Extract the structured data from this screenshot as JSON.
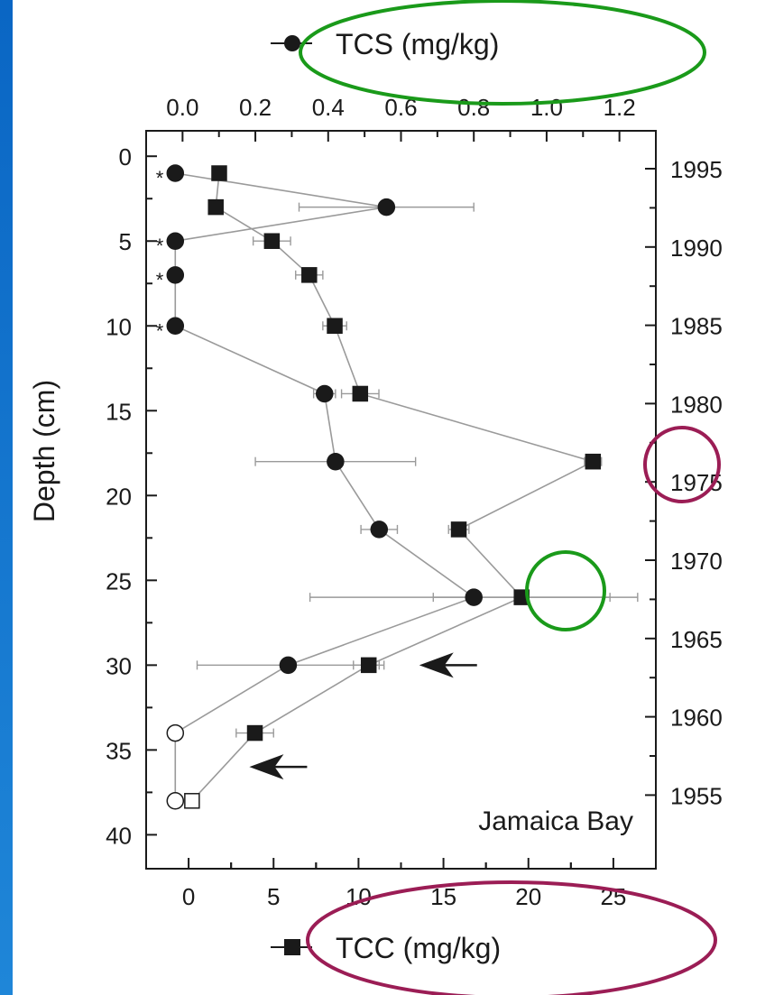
{
  "chart_data": {
    "type": "line",
    "annotation": "Jamaica Bay",
    "left_axis": {
      "label": "Depth (cm)",
      "ticks": [
        0,
        5,
        10,
        15,
        20,
        25,
        30,
        35,
        40
      ],
      "range": [
        -1.5,
        42
      ]
    },
    "right_axis": {
      "ticks": [
        "1995",
        "1990",
        "1985",
        "1980",
        "1975",
        "1970",
        "1965",
        "1960",
        "1955"
      ]
    },
    "top_axis": {
      "label": "TCS (mg/kg)",
      "ticks": [
        "0.0",
        "0.2",
        "0.4",
        "0.6",
        "0.8",
        "1.0",
        "1.2"
      ],
      "range": [
        -0.1,
        1.3
      ]
    },
    "bottom_axis": {
      "label": "TCC (mg/kg)",
      "ticks": [
        "0",
        "5",
        "10",
        "15",
        "20",
        "25"
      ],
      "range": [
        -2.5,
        27.5
      ]
    },
    "series": [
      {
        "name": "TCS (mg/kg)",
        "marker": "circle",
        "points": [
          {
            "depth": 1,
            "value": -0.02,
            "below_detection": true
          },
          {
            "depth": 3,
            "value": 0.56,
            "err": 0.24
          },
          {
            "depth": 5,
            "value": -0.02,
            "below_detection": true
          },
          {
            "depth": 7,
            "value": -0.02,
            "below_detection": true
          },
          {
            "depth": 10,
            "value": -0.02,
            "below_detection": true
          },
          {
            "depth": 14,
            "value": 0.39,
            "err": 0.03
          },
          {
            "depth": 18,
            "value": 0.42,
            "err": 0.22
          },
          {
            "depth": 22,
            "value": 0.54,
            "err": 0.05
          },
          {
            "depth": 26,
            "value": 0.8,
            "err": 0.45
          },
          {
            "depth": 30,
            "value": 0.29,
            "err": 0.25
          },
          {
            "depth": 34,
            "value": -0.02,
            "open": true
          },
          {
            "depth": 38,
            "value": -0.02,
            "open": true
          }
        ]
      },
      {
        "name": "TCC (mg/kg)",
        "marker": "square",
        "points": [
          {
            "depth": 1,
            "value": 1.8
          },
          {
            "depth": 3,
            "value": 1.6
          },
          {
            "depth": 5,
            "value": 4.9,
            "err": 1.1
          },
          {
            "depth": 7,
            "value": 7.1,
            "err": 0.8
          },
          {
            "depth": 10,
            "value": 8.6,
            "err": 0.7
          },
          {
            "depth": 14,
            "value": 10.1,
            "err": 1.1
          },
          {
            "depth": 18,
            "value": 23.8,
            "err": 0.5
          },
          {
            "depth": 22,
            "value": 15.9,
            "err": 0.6
          },
          {
            "depth": 26,
            "value": 19.6,
            "err": 5.2
          },
          {
            "depth": 30,
            "value": 10.6,
            "err": 0.9
          },
          {
            "depth": 34,
            "value": 3.9,
            "err": 1.1
          },
          {
            "depth": 38,
            "value": 0.2,
            "open": true
          }
        ]
      }
    ],
    "arrows": [
      {
        "depth": 30,
        "value": 14
      },
      {
        "depth": 36,
        "value": 4
      }
    ],
    "highlight_colors": {
      "green": "#1a9a1a",
      "purple": "#9b1d55"
    }
  }
}
